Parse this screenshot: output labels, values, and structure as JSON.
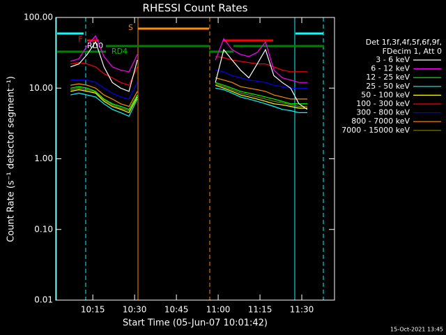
{
  "chart_data": {
    "type": "line",
    "title": "RHESSI Count Rates",
    "xlabel": "Start Time (05-Jun-07 10:01:42)",
    "ylabel": "Count Rate (s⁻¹ detector segment⁻¹)",
    "legend_title": [
      "Det 1f,3f,4f,5f,6f,9f,",
      "FDecim 1, Att 0"
    ],
    "footer": "15-Oct-2021 13:45",
    "annotations": [
      "F",
      "RD0",
      "RD4",
      "S"
    ],
    "log_y": true,
    "x": [
      "10:07",
      "10:10",
      "10:13",
      "10:16",
      "10:19",
      "10:22",
      "10:25",
      "10:28",
      "10:31",
      "10:45",
      "10:59",
      "11:02",
      "11:05",
      "11:08",
      "11:11",
      "11:14",
      "11:17",
      "11:20",
      "11:23",
      "11:26",
      "11:29",
      "11:32"
    ],
    "xlim": [
      "10:01:42",
      "11:41:45"
    ],
    "xticks": [
      "10:15",
      "10:30",
      "10:45",
      "11:00",
      "11:15",
      "11:30"
    ],
    "ylim": [
      0.01,
      100
    ],
    "yticks": [
      {
        "value": 0.01,
        "label": "0.01"
      },
      {
        "value": 0.1,
        "label": "0.10"
      },
      {
        "value": 1,
        "label": "1.00"
      },
      {
        "value": 10,
        "label": "10.00"
      },
      {
        "value": 100,
        "label": "100.00"
      }
    ],
    "series": [
      {
        "name": "3 - 6 keV",
        "color": "#ffffff",
        "values": [
          20,
          22,
          30,
          45,
          20,
          12,
          10,
          9,
          25,
          null,
          12,
          35,
          25,
          18,
          14,
          22,
          35,
          15,
          12,
          10,
          6,
          5
        ]
      },
      {
        "name": "6 - 12 keV",
        "color": "#ff00ff",
        "values": [
          24,
          26,
          40,
          55,
          28,
          20,
          18,
          17,
          30,
          null,
          25,
          50,
          35,
          30,
          28,
          32,
          45,
          18,
          14,
          13,
          12,
          12
        ]
      },
      {
        "name": "12 - 25 keV",
        "color": "#00ff00",
        "values": [
          10,
          10.5,
          10,
          9,
          7,
          6,
          5.5,
          5,
          8,
          null,
          12,
          11,
          10,
          9,
          8.5,
          8,
          7.5,
          7,
          6.5,
          6,
          6,
          6
        ]
      },
      {
        "name": "25 - 50 keV",
        "color": "#00ffff",
        "values": [
          8,
          8.5,
          8,
          7.5,
          6,
          5,
          4.5,
          4,
          7,
          null,
          10,
          9.5,
          8.5,
          7.5,
          7,
          6.5,
          6,
          5.5,
          5,
          4.8,
          4.5,
          4.5
        ]
      },
      {
        "name": "50 - 100 keV",
        "color": "#ffff00",
        "values": [
          9,
          9.5,
          9,
          8.5,
          6.5,
          5.5,
          5,
          4.5,
          7.5,
          null,
          11,
          10,
          9,
          8,
          7.5,
          7,
          6.5,
          6,
          5.8,
          5.5,
          5.2,
          5.2
        ]
      },
      {
        "name": "100 - 300 keV",
        "color": "#ff0000",
        "values": [
          22,
          23,
          22,
          20,
          16,
          14,
          12,
          11,
          20,
          null,
          28,
          27,
          25,
          24,
          23,
          22,
          22,
          20,
          18,
          17,
          17,
          17
        ]
      },
      {
        "name": "300 - 800 keV",
        "color": "#0000ff",
        "values": [
          13,
          13,
          13,
          12,
          10,
          8.5,
          7.5,
          7,
          12,
          null,
          18,
          17,
          15,
          14,
          13,
          12.5,
          12,
          11,
          10.5,
          10,
          10,
          10
        ]
      },
      {
        "name": "800 - 7000 keV",
        "color": "#ff8c00",
        "values": [
          11,
          11.5,
          11,
          10,
          8,
          7,
          6,
          5.5,
          9,
          null,
          14,
          13,
          12,
          10.5,
          10,
          9.5,
          9,
          8,
          7.5,
          7,
          7,
          7
        ]
      },
      {
        "name": "7000 - 15000 keV",
        "color": "#808000",
        "values": [
          9.5,
          10,
          9.5,
          8.8,
          6.8,
          5.8,
          5.2,
          4.8,
          7.8,
          null,
          11.5,
          10.5,
          9.5,
          8.5,
          8,
          7.5,
          7,
          6.5,
          6.2,
          5.8,
          5.5,
          5.5
        ]
      }
    ]
  }
}
